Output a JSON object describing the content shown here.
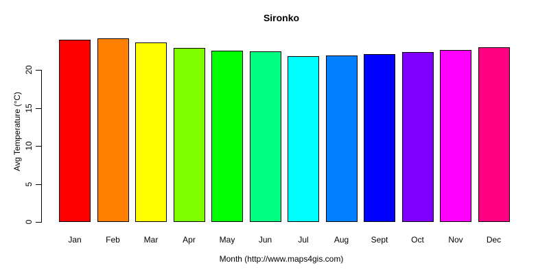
{
  "chart_data": {
    "type": "bar",
    "title": "Sironko",
    "xlabel": "Month (http://www.maps4gis.com)",
    "ylabel": "Avg Temperature (°C)",
    "categories": [
      "Jan",
      "Feb",
      "Mar",
      "Apr",
      "May",
      "Jun",
      "Jul",
      "Aug",
      "Sept",
      "Oct",
      "Nov",
      "Dec"
    ],
    "values": [
      24.0,
      24.1,
      23.6,
      22.9,
      22.5,
      22.4,
      21.8,
      21.9,
      22.1,
      22.3,
      22.6,
      23.0
    ],
    "bar_colors": [
      "#FF0000",
      "#FF8000",
      "#FFFF00",
      "#80FF00",
      "#00FF00",
      "#00FF80",
      "#00FFFF",
      "#0080FF",
      "#0000FF",
      "#8000FF",
      "#FF00FF",
      "#FF0080"
    ],
    "bar_border_color": "#000000",
    "yticks": [
      0,
      5,
      10,
      15,
      20
    ],
    "ytick_labels": [
      "0",
      "5",
      "10",
      "15",
      "20"
    ],
    "ylim": [
      0,
      24.6
    ],
    "grid": false,
    "legend": "none",
    "background": "#FFFFFF"
  }
}
